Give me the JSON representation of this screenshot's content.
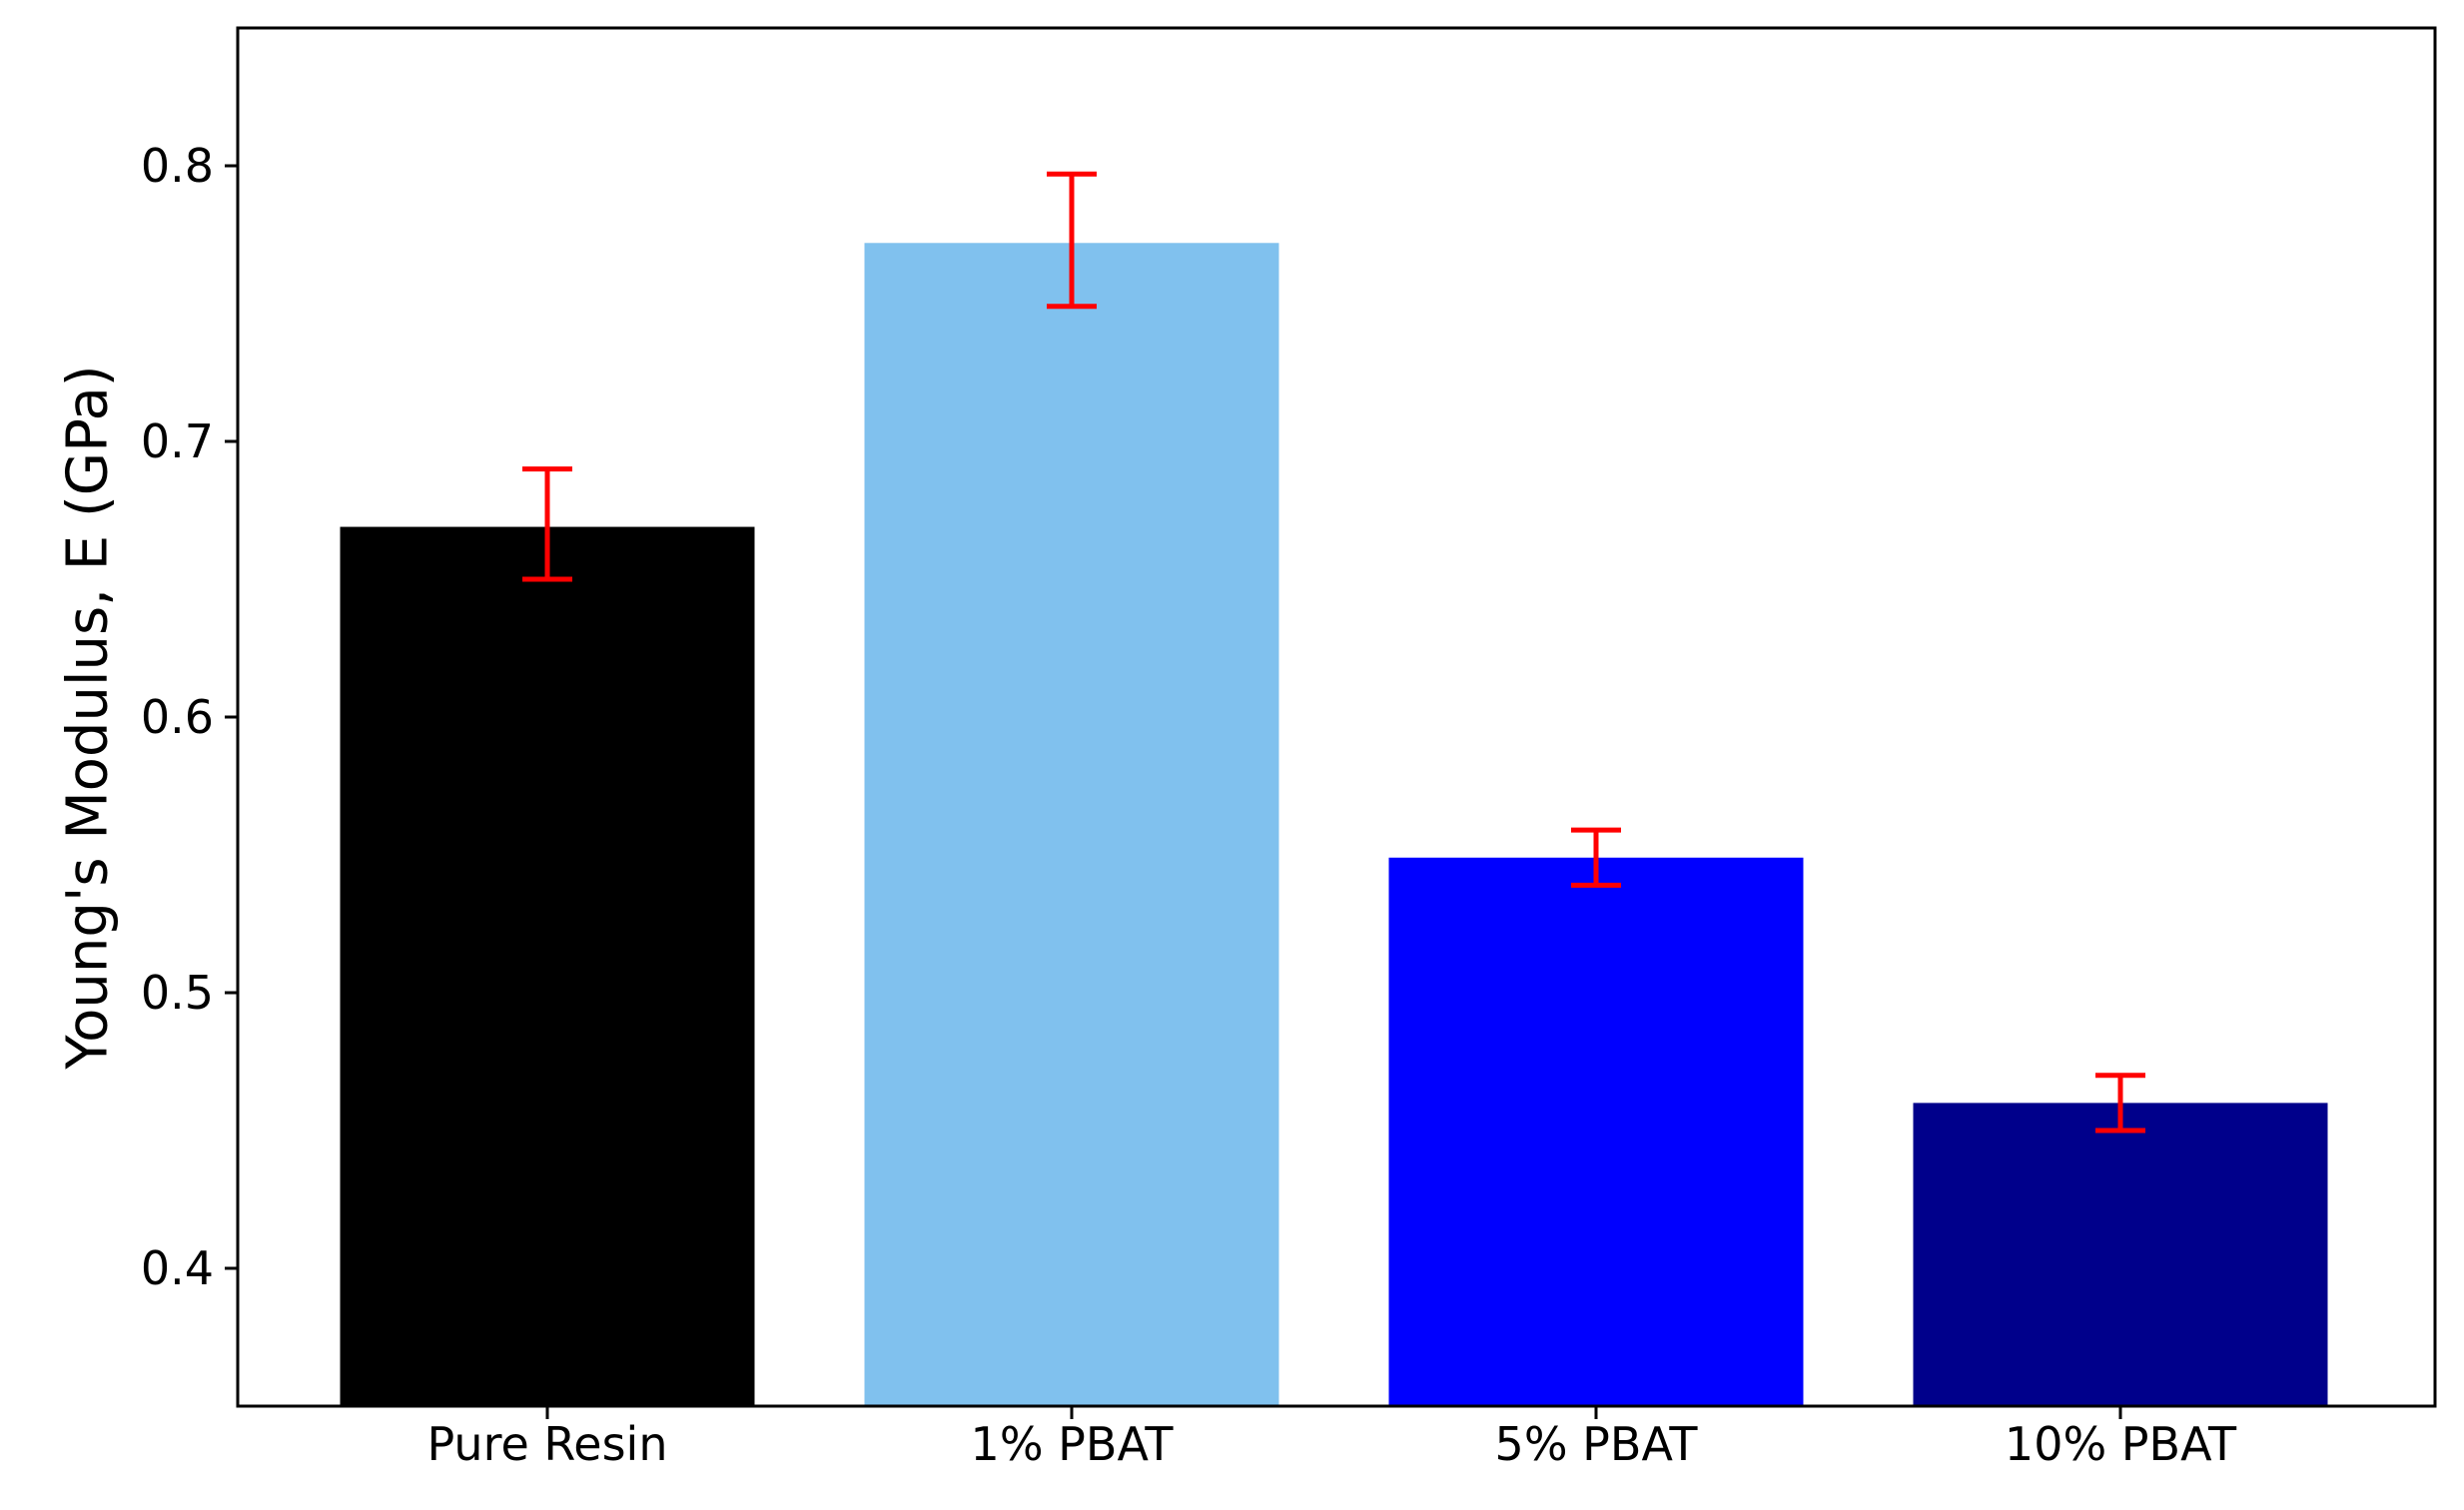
{
  "chart_data": {
    "type": "bar",
    "title": "",
    "xlabel": "",
    "ylabel": "Young's Modulus, E (GPa)",
    "ylim": [
      0.35,
      0.85
    ],
    "yticks": [
      "0.4",
      "0.5",
      "0.6",
      "0.7",
      "0.8"
    ],
    "grid": false,
    "categories": [
      "Pure Resin",
      "1% PBAT",
      "5% PBAT",
      "10% PBAT"
    ],
    "values": [
      0.669,
      0.772,
      0.549,
      0.46
    ],
    "error_low": [
      0.65,
      0.749,
      0.539,
      0.45
    ],
    "error_high": [
      0.69,
      0.797,
      0.559,
      0.47
    ],
    "bar_colors": [
      "#000000",
      "#80c1ee",
      "#0000ff",
      "#00008b"
    ],
    "error_color": "#ff0000"
  }
}
